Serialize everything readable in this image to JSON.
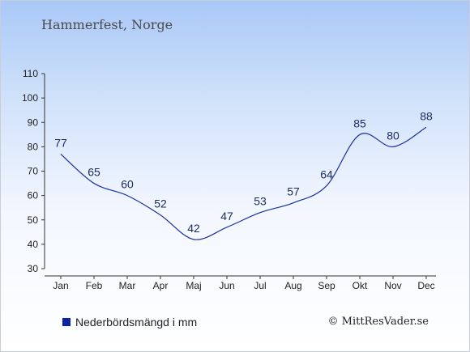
{
  "chart_data": {
    "type": "line",
    "title": "Hammerfest, Norge",
    "categories": [
      "Jan",
      "Feb",
      "Mar",
      "Apr",
      "Maj",
      "Jun",
      "Jul",
      "Aug",
      "Sep",
      "Okt",
      "Nov",
      "Dec"
    ],
    "series": [
      {
        "name": "Nederbördsmängd i mm",
        "values": [
          77,
          65,
          60,
          52,
          42,
          47,
          53,
          57,
          64,
          85,
          80,
          88
        ]
      }
    ],
    "ylim": [
      30,
      110
    ],
    "yticks": [
      30,
      40,
      50,
      60,
      70,
      80,
      90,
      100,
      110
    ],
    "xlabel": "",
    "ylabel": "",
    "grid": false,
    "legend_position": "bottom-left",
    "line_color": "#1c2f9e"
  },
  "footer": {
    "copyright": "© MittResVader.se"
  }
}
